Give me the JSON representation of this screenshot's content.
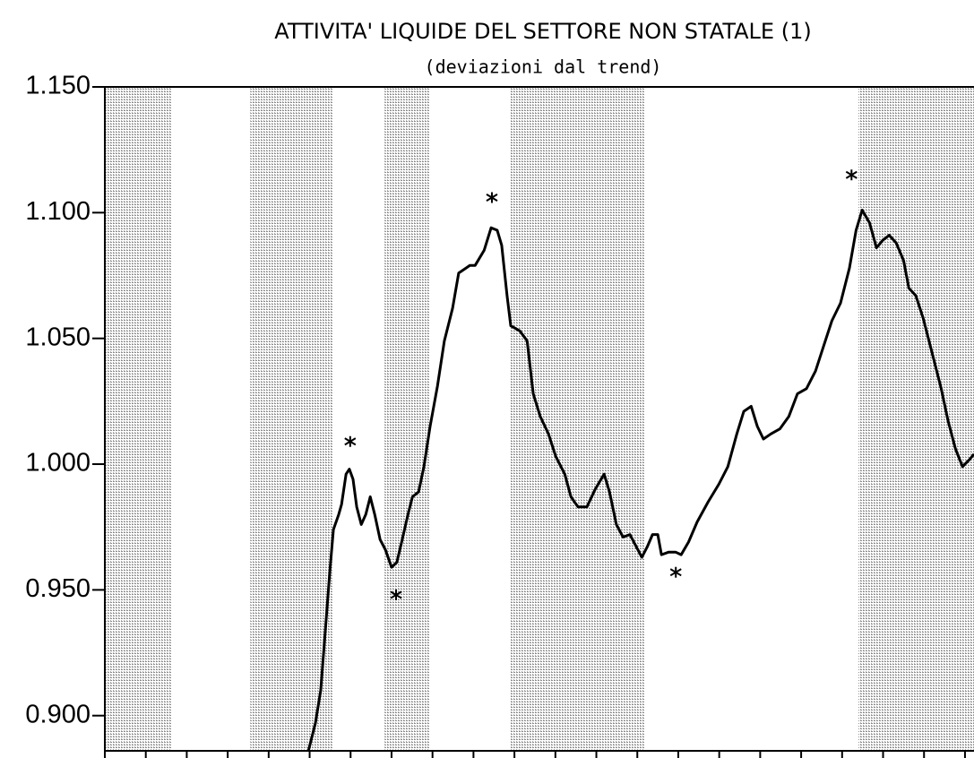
{
  "chart_data": {
    "type": "line",
    "title": "ATTIVITA' LIQUIDE DEL SETTORE NON STATALE (1)",
    "subtitle": "(deviazioni dal trend)",
    "xlim": [
      70,
      91.22
    ],
    "ylim": [
      0.886,
      1.15
    ],
    "xticks": [
      70,
      71,
      72,
      73,
      74,
      75,
      76,
      77,
      78,
      79,
      80,
      81,
      82,
      83,
      84,
      85,
      86,
      87,
      88,
      89,
      90,
      91
    ],
    "yticks": [
      {
        "value": 0.9,
        "label": "0.900"
      },
      {
        "value": 0.95,
        "label": "0.950"
      },
      {
        "value": 1.0,
        "label": "1.000"
      },
      {
        "value": 1.05,
        "label": "1.050"
      },
      {
        "value": 1.1,
        "label": "1.100"
      },
      {
        "value": 1.15,
        "label": "1.150"
      }
    ],
    "shaded_periods": [
      [
        70,
        71.64
      ],
      [
        73.55,
        75.56
      ],
      [
        76.83,
        77.94
      ],
      [
        79.9,
        83.17
      ],
      [
        88.4,
        91.22
      ]
    ],
    "color": "#000000",
    "x": [
      74.97,
      75.14,
      75.27,
      75.38,
      75.49,
      75.58,
      75.71,
      75.78,
      75.89,
      75.97,
      76.06,
      76.15,
      76.26,
      76.37,
      76.48,
      76.59,
      76.72,
      76.85,
      77.0,
      77.13,
      77.26,
      77.4,
      77.51,
      77.66,
      77.79,
      77.94,
      78.12,
      78.29,
      78.49,
      78.64,
      78.82,
      78.91,
      79.04,
      79.26,
      79.43,
      79.58,
      79.69,
      79.82,
      79.91,
      80.13,
      80.31,
      80.46,
      80.63,
      80.83,
      81.01,
      81.23,
      81.38,
      81.55,
      81.77,
      81.97,
      82.19,
      82.32,
      82.49,
      82.65,
      82.82,
      82.98,
      83.11,
      83.24,
      83.37,
      83.5,
      83.59,
      83.76,
      83.94,
      84.07,
      84.25,
      84.46,
      84.73,
      84.99,
      85.21,
      85.43,
      85.6,
      85.78,
      85.93,
      86.08,
      86.26,
      86.48,
      86.7,
      86.91,
      87.13,
      87.35,
      87.53,
      87.75,
      87.96,
      88.18,
      88.34,
      88.49,
      88.67,
      88.84,
      88.99,
      89.15,
      89.32,
      89.5,
      89.63,
      89.8,
      89.98,
      90.2,
      90.42,
      90.59,
      90.77,
      90.94,
      91.12,
      91.22
    ],
    "values": [
      0.886,
      0.897,
      0.91,
      0.933,
      0.957,
      0.974,
      0.98,
      0.984,
      0.996,
      0.998,
      0.994,
      0.983,
      0.976,
      0.98,
      0.987,
      0.98,
      0.97,
      0.966,
      0.959,
      0.961,
      0.97,
      0.98,
      0.987,
      0.989,
      0.999,
      1.015,
      1.031,
      1.049,
      1.062,
      1.076,
      1.078,
      1.079,
      1.079,
      1.085,
      1.094,
      1.093,
      1.087,
      1.067,
      1.055,
      1.053,
      1.049,
      1.028,
      1.019,
      1.012,
      1.003,
      0.996,
      0.987,
      0.983,
      0.983,
      0.99,
      0.996,
      0.989,
      0.976,
      0.971,
      0.972,
      0.967,
      0.963,
      0.967,
      0.972,
      0.972,
      0.964,
      0.965,
      0.965,
      0.964,
      0.969,
      0.977,
      0.985,
      0.992,
      0.999,
      1.012,
      1.021,
      1.023,
      1.015,
      1.01,
      1.012,
      1.014,
      1.019,
      1.028,
      1.03,
      1.037,
      1.046,
      1.057,
      1.064,
      1.078,
      1.093,
      1.101,
      1.096,
      1.086,
      1.089,
      1.091,
      1.088,
      1.081,
      1.07,
      1.067,
      1.058,
      1.044,
      1.03,
      1.017,
      1.006,
      0.999,
      1.002,
      1.004
    ],
    "markers": {
      "x": [
        75.99,
        77.11,
        79.45,
        83.94,
        88.23
      ],
      "values": [
        1.009,
        0.948,
        1.106,
        0.957,
        1.115
      ]
    }
  }
}
